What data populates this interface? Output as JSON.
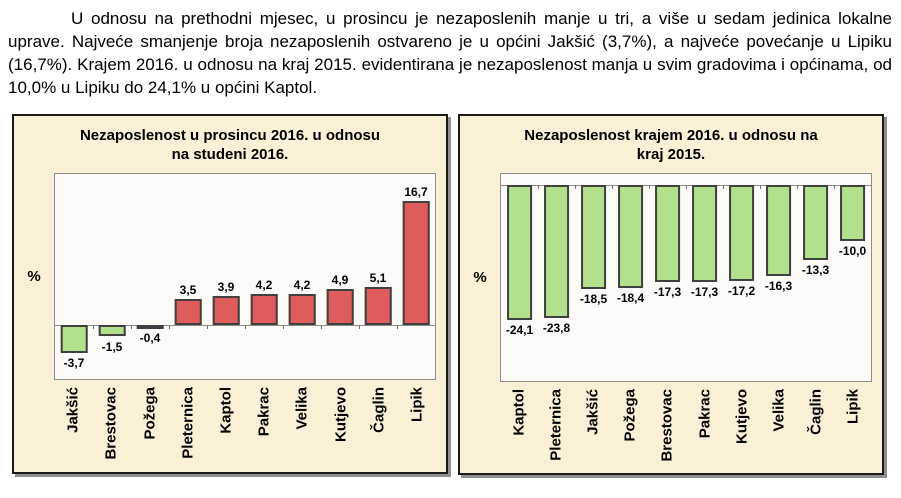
{
  "paragraph": {
    "text": "U odnosu na prethodni mjesec, u prosincu je nezaposlenih manje u tri, a više u sedam jedinica lokalne uprave. Najveće smanjenje broja nezaposlenih ostvareno je u općini Jakšić (3,7%), a najveće povećanje u Lipiku (16,7%). Krajem 2016. u odnosu na kraj 2015. evidentirana je nezaposlenost manja u svim gradovima i općinama, od 10,0% u Lipiku do 24,1% u općini Kaptol."
  },
  "page": {
    "panel_background": "#FAF0D5",
    "plot_background": "#FBFAF5"
  },
  "chart_data": [
    {
      "type": "bar",
      "title": "Nezaposlenost u prosincu 2016. u odnosu na studeni 2016.",
      "title_lines": [
        "Nezaposlenost u prosincu 2016. u odnosu",
        "na studeni 2016."
      ],
      "xlabel": "",
      "ylabel": "%",
      "categories": [
        "Jakšić",
        "Brestovac",
        "Požega",
        "Pleternica",
        "Kaptol",
        "Pakrac",
        "Velika",
        "Kutjevo",
        "Čaglin",
        "Lipik"
      ],
      "values": [
        -3.7,
        -1.5,
        -0.4,
        3.5,
        3.9,
        4.2,
        4.2,
        4.9,
        5.1,
        16.7
      ],
      "labels": [
        "-3,7",
        "-1,5",
        "-0,4",
        "3,5",
        "3,9",
        "4,2",
        "4,2",
        "4,9",
        "5,1",
        "16,7"
      ],
      "ylim": [
        -7.2,
        20.3
      ],
      "grid": false,
      "legend": null,
      "positive_color": "#DF5C5C",
      "negative_color": "#B2E08C",
      "bar_border_color": "#404040"
    },
    {
      "type": "bar",
      "title": "Nezaposlenost krajem 2016. u odnosu na kraj 2015.",
      "title_lines": [
        "Nezaposlenost krajem 2016. u odnosu na",
        "kraj 2015."
      ],
      "xlabel": "",
      "ylabel": "%",
      "categories": [
        "Kaptol",
        "Pleternica",
        "Jakšić",
        "Požega",
        "Brestovac",
        "Pakrac",
        "Kutjevo",
        "Velika",
        "Čaglin",
        "Lipik"
      ],
      "values": [
        -24.1,
        -23.8,
        -18.5,
        -18.4,
        -17.3,
        -17.3,
        -17.2,
        -16.3,
        -13.3,
        -10.0
      ],
      "labels": [
        "-24,1",
        "-23,8",
        "-18,5",
        "-18,4",
        "-17,3",
        "-17,3",
        "-17,2",
        "-16,3",
        "-13,3",
        "-10,0"
      ],
      "ylim": [
        -35,
        2
      ],
      "grid": false,
      "legend": null,
      "positive_color": "#B2E08C",
      "negative_color": "#B2E08C",
      "bar_border_color": "#404040"
    }
  ]
}
